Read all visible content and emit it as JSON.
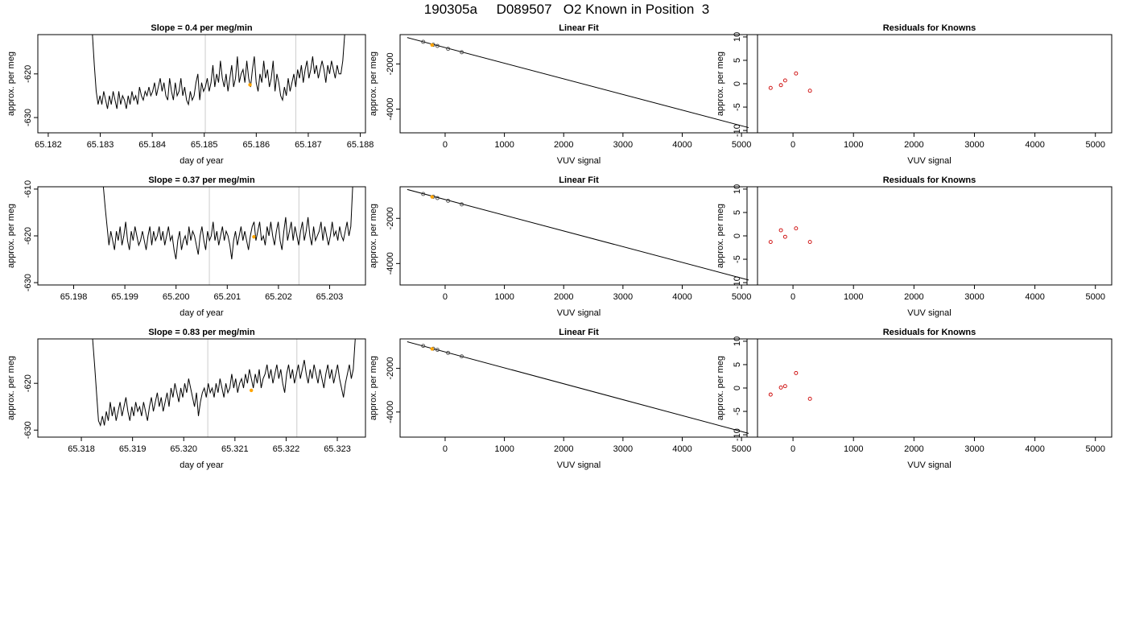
{
  "figure": {
    "title": "190305a     D089507   O2 Known in Position  3"
  },
  "colors": {
    "trace": "#000000",
    "marker": "#ffa500",
    "vline": "#cccccc",
    "resid": "#cc0000"
  },
  "chart_data": [
    {
      "type": "line",
      "title": "Slope =  0.4  per meg/min",
      "xlabel": "day of year",
      "ylabel": "approx. per meg",
      "xlim": [
        65.1818,
        65.1881
      ],
      "ylim": [
        -633.5,
        -611
      ],
      "xticks": [
        65.182,
        65.183,
        65.184,
        65.185,
        65.186,
        65.187,
        65.188
      ],
      "xtick_labels": [
        "65.182",
        "65.183",
        "65.184",
        "65.185",
        "65.186",
        "65.187",
        "65.188"
      ],
      "yticks": [
        -630,
        -620
      ],
      "ytick_labels": [
        "-630",
        "-620"
      ],
      "vlines": [
        65.18502,
        65.18676
      ],
      "marker": {
        "x": 65.18588,
        "y": -622.5
      },
      "series": [
        {
          "x_start": 65.18285,
          "x_end": 65.1877,
          "y": [
            -611,
            -618,
            -624,
            -627,
            -625,
            -627,
            -624,
            -626,
            -628,
            -625,
            -627,
            -624,
            -626,
            -628,
            -624,
            -627,
            -625,
            -626,
            -628,
            -625,
            -627,
            -624,
            -626,
            -625,
            -627,
            -623,
            -625,
            -626,
            -624,
            -625,
            -623,
            -625,
            -624,
            -622,
            -625,
            -623,
            -621,
            -624,
            -622,
            -625,
            -626,
            -621,
            -624,
            -626,
            -622,
            -625,
            -624,
            -621,
            -625,
            -623,
            -626,
            -627,
            -624,
            -626,
            -625,
            -622,
            -620,
            -626,
            -622,
            -624,
            -623,
            -621,
            -624,
            -622,
            -618,
            -623,
            -620,
            -622,
            -617,
            -621,
            -623,
            -620,
            -624,
            -621,
            -618,
            -623,
            -621,
            -616,
            -622,
            -620,
            -619,
            -622,
            -617,
            -621,
            -623,
            -619,
            -616,
            -622,
            -624,
            -620,
            -622,
            -617,
            -621,
            -619,
            -623,
            -621,
            -617,
            -624,
            -620,
            -622,
            -625,
            -626,
            -623,
            -625,
            -621,
            -624,
            -622,
            -620,
            -623,
            -619,
            -621,
            -618,
            -622,
            -619,
            -617,
            -621,
            -619,
            -616,
            -620,
            -618,
            -621,
            -619,
            -617,
            -619,
            -622,
            -618,
            -620,
            -617,
            -619,
            -621,
            -618,
            -620,
            -620,
            -617,
            -611
          ]
        }
      ]
    },
    {
      "type": "line",
      "title": "Linear Fit",
      "xlabel": "VUV signal",
      "ylabel": "approx. per meg",
      "xlim": [
        -760,
        5270
      ],
      "ylim": [
        -5050,
        -700
      ],
      "xticks": [
        0,
        1000,
        2000,
        3000,
        4000,
        5000
      ],
      "xtick_labels": [
        "0",
        "1000",
        "2000",
        "3000",
        "4000",
        "5000"
      ],
      "yticks": [
        -4000,
        -2000
      ],
      "ytick_labels": [
        "-4000",
        "-2000"
      ],
      "fit_line": {
        "x": [
          -640,
          5120
        ],
        "y": [
          -830,
          -4820
        ]
      },
      "points": [
        {
          "x": -370,
          "y": -1020
        },
        {
          "x": -200,
          "y": -1150
        },
        {
          "x": -130,
          "y": -1200
        },
        {
          "x": 50,
          "y": -1330
        },
        {
          "x": 280,
          "y": -1480
        }
      ],
      "marker": {
        "x": -220,
        "y": -1160
      }
    },
    {
      "type": "scatter",
      "title": "Residuals for Knowns",
      "xlabel": "VUV signal",
      "ylabel": "approx. per meg",
      "xlim": [
        -760,
        5270
      ],
      "ylim": [
        -10.5,
        10.5
      ],
      "xticks": [
        0,
        1000,
        2000,
        3000,
        4000,
        5000
      ],
      "xtick_labels": [
        "0",
        "1000",
        "2000",
        "3000",
        "4000",
        "5000"
      ],
      "yticks": [
        -10,
        -5,
        0,
        5,
        10
      ],
      "ytick_labels": [
        "-10",
        "-5",
        "0",
        "5",
        "10"
      ],
      "points": [
        {
          "x": -370,
          "y": -0.9
        },
        {
          "x": -200,
          "y": -0.3
        },
        {
          "x": -130,
          "y": 0.7
        },
        {
          "x": 50,
          "y": 2.2
        },
        {
          "x": 280,
          "y": -1.5
        }
      ]
    },
    {
      "type": "line",
      "title": "Slope =  0.37  per meg/min",
      "xlabel": "day of year",
      "ylabel": "approx. per meg",
      "xlim": [
        65.1973,
        65.2037
      ],
      "ylim": [
        -630.5,
        -609.5
      ],
      "xticks": [
        65.198,
        65.199,
        65.2,
        65.201,
        65.202,
        65.203
      ],
      "xtick_labels": [
        "65.198",
        "65.199",
        "65.200",
        "65.201",
        "65.202",
        "65.203"
      ],
      "yticks": [
        -630,
        -620,
        -610
      ],
      "ytick_labels": [
        "-630",
        "-620",
        "-610"
      ],
      "vlines": [
        65.20065,
        65.2024
      ],
      "marker": {
        "x": 65.20152,
        "y": -620.2
      },
      "series": [
        {
          "x_start": 65.19858,
          "x_end": 65.20345,
          "y": [
            -609.5,
            -614,
            -618,
            -622,
            -619,
            -621,
            -623,
            -619,
            -621,
            -618,
            -622,
            -620,
            -617,
            -621,
            -623,
            -619,
            -621,
            -618,
            -620,
            -622,
            -621,
            -619,
            -621,
            -623,
            -620,
            -618,
            -622,
            -619,
            -621,
            -620,
            -618,
            -621,
            -619,
            -622,
            -620,
            -618,
            -621,
            -620,
            -623,
            -625,
            -621,
            -619,
            -623,
            -621,
            -620,
            -622,
            -618,
            -621,
            -619,
            -620,
            -622,
            -624,
            -620,
            -618,
            -621,
            -623,
            -619,
            -621,
            -620,
            -617,
            -621,
            -619,
            -622,
            -620,
            -618,
            -621,
            -619,
            -620,
            -622,
            -625,
            -621,
            -619,
            -622,
            -620,
            -618,
            -621,
            -619,
            -621,
            -623,
            -620,
            -618,
            -617,
            -621,
            -619,
            -617,
            -621,
            -620,
            -622,
            -618,
            -620,
            -617,
            -620,
            -622,
            -619,
            -617,
            -621,
            -623,
            -619,
            -616,
            -621,
            -619,
            -617,
            -621,
            -618,
            -620,
            -622,
            -619,
            -617,
            -621,
            -619,
            -616,
            -620,
            -622,
            -618,
            -621,
            -620,
            -619,
            -617,
            -621,
            -618,
            -620,
            -622,
            -620,
            -617,
            -620,
            -619,
            -621,
            -618,
            -620,
            -621,
            -619,
            -617,
            -620,
            -618,
            -609.5
          ]
        }
      ]
    },
    {
      "type": "line",
      "title": "Linear Fit",
      "xlabel": "VUV signal",
      "ylabel": "approx. per meg",
      "xlim": [
        -760,
        5270
      ],
      "ylim": [
        -4950,
        -600
      ],
      "xticks": [
        0,
        1000,
        2000,
        3000,
        4000,
        5000
      ],
      "xtick_labels": [
        "0",
        "1000",
        "2000",
        "3000",
        "4000",
        "5000"
      ],
      "yticks": [
        -4000,
        -2000
      ],
      "ytick_labels": [
        "-4000",
        "-2000"
      ],
      "fit_line": {
        "x": [
          -640,
          5120
        ],
        "y": [
          -720,
          -4730
        ]
      },
      "points": [
        {
          "x": -370,
          "y": -920
        },
        {
          "x": -200,
          "y": -1040
        },
        {
          "x": -130,
          "y": -1100
        },
        {
          "x": 50,
          "y": -1220
        },
        {
          "x": 280,
          "y": -1380
        }
      ],
      "marker": {
        "x": -220,
        "y": -1050
      }
    },
    {
      "type": "scatter",
      "title": "Residuals for Knowns",
      "xlabel": "VUV signal",
      "ylabel": "approx. per meg",
      "xlim": [
        -760,
        5270
      ],
      "ylim": [
        -10.5,
        10.5
      ],
      "xticks": [
        0,
        1000,
        2000,
        3000,
        4000,
        5000
      ],
      "xtick_labels": [
        "0",
        "1000",
        "2000",
        "3000",
        "4000",
        "5000"
      ],
      "yticks": [
        -10,
        -5,
        0,
        5,
        10
      ],
      "ytick_labels": [
        "-10",
        "-5",
        "0",
        "5",
        "10"
      ],
      "points": [
        {
          "x": -370,
          "y": -1.3
        },
        {
          "x": -200,
          "y": 1.2
        },
        {
          "x": -130,
          "y": -0.2
        },
        {
          "x": 50,
          "y": 1.6
        },
        {
          "x": 280,
          "y": -1.3
        }
      ]
    },
    {
      "type": "line",
      "title": "Slope =  0.83  per meg/min",
      "xlabel": "day of year",
      "ylabel": "approx. per meg",
      "xlim": [
        65.31715,
        65.32355
      ],
      "ylim": [
        -631.5,
        -610.5
      ],
      "xticks": [
        65.318,
        65.319,
        65.32,
        65.321,
        65.322,
        65.323
      ],
      "xtick_labels": [
        "65.318",
        "65.319",
        "65.320",
        "65.321",
        "65.322",
        "65.323"
      ],
      "yticks": [
        -630,
        -620
      ],
      "ytick_labels": [
        "-630",
        "-620"
      ],
      "vlines": [
        65.32047,
        65.32221
      ],
      "marker": {
        "x": 65.32132,
        "y": -621.5
      },
      "series": [
        {
          "x_start": 65.31822,
          "x_end": 65.32335,
          "y": [
            -610.5,
            -616,
            -622,
            -628,
            -629,
            -627,
            -629,
            -626,
            -628,
            -624,
            -627,
            -625,
            -628,
            -626,
            -624,
            -627,
            -625,
            -623,
            -626,
            -628,
            -625,
            -627,
            -624,
            -626,
            -625,
            -627,
            -624,
            -626,
            -628,
            -625,
            -623,
            -626,
            -624,
            -622,
            -625,
            -623,
            -626,
            -624,
            -622,
            -625,
            -621,
            -623,
            -620,
            -622,
            -624,
            -621,
            -623,
            -620,
            -622,
            -619,
            -621,
            -623,
            -625,
            -622,
            -627,
            -624,
            -622,
            -621,
            -623,
            -620,
            -622,
            -621,
            -623,
            -620,
            -622,
            -619,
            -621,
            -623,
            -620,
            -622,
            -621,
            -618,
            -621,
            -619,
            -622,
            -620,
            -619,
            -621,
            -618,
            -620,
            -617,
            -619,
            -621,
            -618,
            -620,
            -617,
            -621,
            -619,
            -618,
            -616,
            -619,
            -617,
            -620,
            -618,
            -616,
            -619,
            -617,
            -620,
            -622,
            -618,
            -616,
            -619,
            -617,
            -620,
            -618,
            -616,
            -619,
            -617,
            -615,
            -618,
            -620,
            -617,
            -619,
            -616,
            -618,
            -620,
            -617,
            -619,
            -621,
            -618,
            -616,
            -619,
            -617,
            -620,
            -618,
            -616,
            -619,
            -621,
            -623,
            -620,
            -618,
            -616,
            -619,
            -617,
            -610.5
          ]
        }
      ]
    },
    {
      "type": "line",
      "title": "Linear Fit",
      "xlabel": "VUV signal",
      "ylabel": "approx. per meg",
      "xlim": [
        -760,
        5270
      ],
      "ylim": [
        -5150,
        -650
      ],
      "xticks": [
        0,
        1000,
        2000,
        3000,
        4000,
        5000
      ],
      "xtick_labels": [
        "0",
        "1000",
        "2000",
        "3000",
        "4000",
        "5000"
      ],
      "yticks": [
        -4000,
        -2000
      ],
      "ytick_labels": [
        "-4000",
        "-2000"
      ],
      "fit_line": {
        "x": [
          -640,
          5120
        ],
        "y": [
          -780,
          -4980
        ]
      },
      "points": [
        {
          "x": -370,
          "y": -970
        },
        {
          "x": -200,
          "y": -1100
        },
        {
          "x": -130,
          "y": -1150
        },
        {
          "x": 50,
          "y": -1290
        },
        {
          "x": 280,
          "y": -1450
        }
      ],
      "marker": {
        "x": -220,
        "y": -1110
      }
    },
    {
      "type": "scatter",
      "title": "Residuals for Knowns",
      "xlabel": "VUV signal",
      "ylabel": "approx. per meg",
      "xlim": [
        -760,
        5270
      ],
      "ylim": [
        -10.5,
        10.5
      ],
      "xticks": [
        0,
        1000,
        2000,
        3000,
        4000,
        5000
      ],
      "xtick_labels": [
        "0",
        "1000",
        "2000",
        "3000",
        "4000",
        "5000"
      ],
      "yticks": [
        -10,
        -5,
        0,
        5,
        10
      ],
      "ytick_labels": [
        "-10",
        "-5",
        "0",
        "5",
        "10"
      ],
      "points": [
        {
          "x": -370,
          "y": -1.4
        },
        {
          "x": -200,
          "y": 0.1
        },
        {
          "x": -130,
          "y": 0.4
        },
        {
          "x": 50,
          "y": 3.2
        },
        {
          "x": 280,
          "y": -2.3
        }
      ]
    }
  ]
}
